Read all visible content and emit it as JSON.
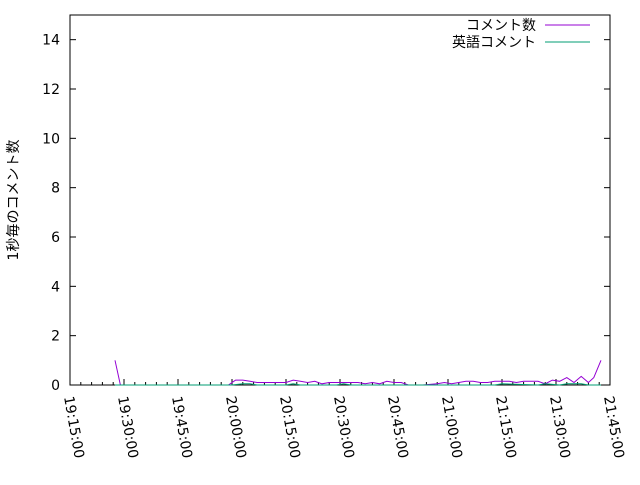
{
  "chart_data": {
    "type": "line",
    "title": "",
    "xlabel": "",
    "ylabel": "1秒毎のコメント数",
    "xlim": [
      "19:15:00",
      "21:45:00"
    ],
    "ylim": [
      0,
      15
    ],
    "xticks": [
      "19:15:00",
      "19:30:00",
      "19:45:00",
      "20:00:00",
      "20:15:00",
      "20:30:00",
      "20:45:00",
      "21:00:00",
      "21:15:00",
      "21:30:00",
      "21:45:00"
    ],
    "yticks": [
      "0",
      "2",
      "4",
      "6",
      "8",
      "10",
      "12",
      "14"
    ],
    "grid": false,
    "legend_position": "top-right",
    "series": [
      {
        "name": "コメント数",
        "color": "#9400d3",
        "x": [
          "19:27:30",
          "19:29:00",
          "19:59:00",
          "20:01:00",
          "20:03:00",
          "20:05:00",
          "20:07:00",
          "20:09:00",
          "20:11:00",
          "20:13:00",
          "20:15:00",
          "20:17:00",
          "20:19:00",
          "20:21:00",
          "20:23:00",
          "20:25:00",
          "20:27:00",
          "20:29:00",
          "20:31:00",
          "20:33:00",
          "20:35:00",
          "20:37:00",
          "20:39:00",
          "20:41:00",
          "20:43:00",
          "20:45:00",
          "20:47:00",
          "20:49:00",
          "20:53:00",
          "20:57:00",
          "20:59:00",
          "21:01:00",
          "21:03:00",
          "21:05:00",
          "21:07:00",
          "21:09:00",
          "21:11:00",
          "21:13:00",
          "21:15:00",
          "21:17:00",
          "21:19:00",
          "21:21:00",
          "21:23:00",
          "21:25:00",
          "21:27:00",
          "21:29:00",
          "21:31:00",
          "21:33:00",
          "21:35:00",
          "21:37:00",
          "21:39:00",
          "21:40:30",
          "21:42:30"
        ],
        "values": [
          1.0,
          0,
          0,
          0.2,
          0.2,
          0.15,
          0.1,
          0.1,
          0.1,
          0.1,
          0.1,
          0.2,
          0.15,
          0.1,
          0.15,
          0.05,
          0.1,
          0.1,
          0.1,
          0.1,
          0.1,
          0.05,
          0.1,
          0.05,
          0.15,
          0.1,
          0.1,
          0,
          0,
          0.05,
          0.1,
          0.05,
          0.1,
          0.15,
          0.15,
          0.1,
          0.1,
          0.15,
          0.15,
          0.15,
          0.1,
          0.15,
          0.15,
          0.15,
          0.05,
          0.2,
          0.15,
          0.3,
          0.1,
          0.35,
          0.1,
          0.3,
          1.0
        ]
      },
      {
        "name": "英語コメント",
        "color": "#009e73",
        "x": [
          "19:27:30",
          "20:00:00",
          "20:03:00",
          "20:05:00",
          "20:07:00",
          "20:15:00",
          "20:17:00",
          "20:19:00",
          "20:29:00",
          "20:31:00",
          "20:33:00",
          "21:13:00",
          "21:15:00",
          "21:25:00",
          "21:27:00",
          "21:31:00",
          "21:33:00",
          "21:37:00",
          "21:39:00",
          "21:42:30"
        ],
        "values": [
          0,
          0,
          0.05,
          0.05,
          0,
          0,
          0.05,
          0,
          0,
          0.05,
          0,
          0,
          0.05,
          0,
          0.05,
          0,
          0.05,
          0.05,
          0,
          0
        ]
      }
    ]
  }
}
